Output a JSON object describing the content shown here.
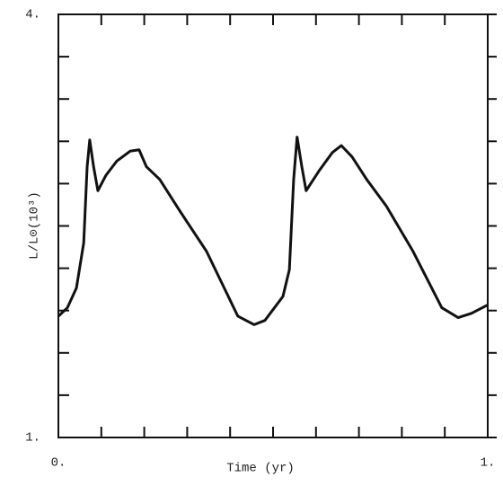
{
  "chart_data": {
    "type": "line",
    "x_label": "Time (yr)",
    "y_label": "L/L⊙(10³)",
    "xlim": [
      0,
      1
    ],
    "ylim": [
      1,
      4
    ],
    "xticks": [
      {
        "value": 0,
        "label": "0."
      },
      {
        "value": 1,
        "label": "1."
      }
    ],
    "xminor": [
      0.1,
      0.2,
      0.3,
      0.4,
      0.5,
      0.6,
      0.7,
      0.8,
      0.9
    ],
    "yticks": [
      {
        "value": 1,
        "label": "1."
      },
      {
        "value": 4,
        "label": "4."
      }
    ],
    "yminor": [
      1.3,
      1.6,
      1.9,
      2.2,
      2.5,
      2.8,
      3.1,
      3.4,
      3.7
    ],
    "series": [
      {
        "color": "#111111",
        "x": [
          0,
          0.021,
          0.042,
          0.059,
          0.067,
          0.073,
          0.082,
          0.092,
          0.111,
          0.136,
          0.167,
          0.188,
          0.205,
          0.236,
          0.282,
          0.345,
          0.418,
          0.456,
          0.481,
          0.523,
          0.538,
          0.548,
          0.556,
          0.567,
          0.577,
          0.607,
          0.638,
          0.659,
          0.684,
          0.718,
          0.764,
          0.826,
          0.893,
          0.931,
          0.962,
          1
        ],
        "values": [
          1.86,
          1.92,
          2.06,
          2.38,
          2.92,
          3.11,
          2.92,
          2.75,
          2.86,
          2.96,
          3.03,
          3.04,
          2.92,
          2.83,
          2.61,
          2.32,
          1.86,
          1.8,
          1.83,
          2.0,
          2.19,
          2.83,
          3.13,
          2.92,
          2.75,
          2.89,
          3.02,
          3.07,
          2.99,
          2.83,
          2.64,
          2.32,
          1.92,
          1.85,
          1.88,
          1.94
        ]
      }
    ]
  }
}
